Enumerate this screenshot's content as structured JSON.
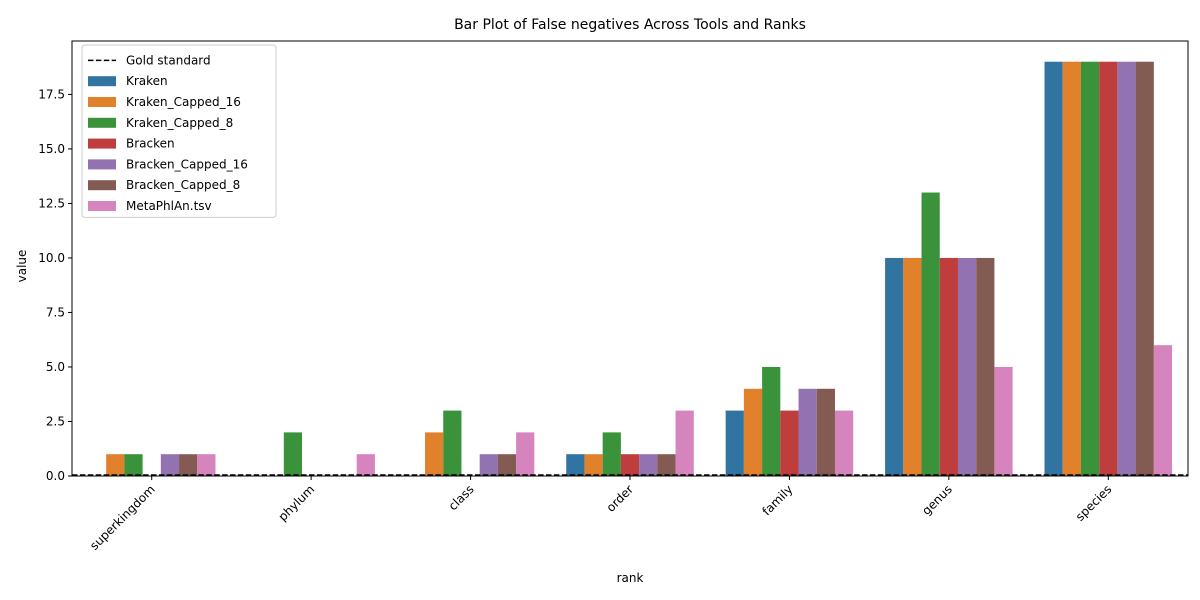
{
  "chart_data": {
    "type": "bar",
    "title": "Bar Plot of False negatives Across Tools and Ranks",
    "xlabel": "rank",
    "ylabel": "value",
    "categories": [
      "superkingdom",
      "phylum",
      "class",
      "order",
      "family",
      "genus",
      "species"
    ],
    "series": [
      {
        "name": "Kraken",
        "color": "#3274a1",
        "values": [
          0,
          0,
          0,
          1,
          3,
          10,
          19
        ]
      },
      {
        "name": "Kraken_Capped_16",
        "color": "#e1812c",
        "values": [
          1,
          0,
          2,
          1,
          4,
          10,
          19
        ]
      },
      {
        "name": "Kraken_Capped_8",
        "color": "#3a923a",
        "values": [
          1,
          2,
          3,
          2,
          5,
          13,
          19
        ]
      },
      {
        "name": "Bracken",
        "color": "#c03d3e",
        "values": [
          0,
          0,
          0,
          1,
          3,
          10,
          19
        ]
      },
      {
        "name": "Bracken_Capped_16",
        "color": "#9372b2",
        "values": [
          1,
          0,
          1,
          1,
          4,
          10,
          19
        ]
      },
      {
        "name": "Bracken_Capped_8",
        "color": "#845b53",
        "values": [
          1,
          0,
          1,
          1,
          4,
          10,
          19
        ]
      },
      {
        "name": "MetaPhlAn.tsv",
        "color": "#d684bd",
        "values": [
          1,
          1,
          2,
          3,
          3,
          5,
          6
        ]
      }
    ],
    "reference_line": {
      "name": "Gold standard",
      "value": 0,
      "style": "dashed",
      "color": "#000000"
    },
    "ylim": [
      0,
      19.95
    ],
    "yticks": [
      0.0,
      2.5,
      5.0,
      7.5,
      10.0,
      12.5,
      15.0,
      17.5
    ],
    "ytick_labels": [
      "0.0",
      "2.5",
      "5.0",
      "7.5",
      "10.0",
      "12.5",
      "15.0",
      "17.5"
    ],
    "grid": false,
    "legend_position": "upper-left"
  }
}
